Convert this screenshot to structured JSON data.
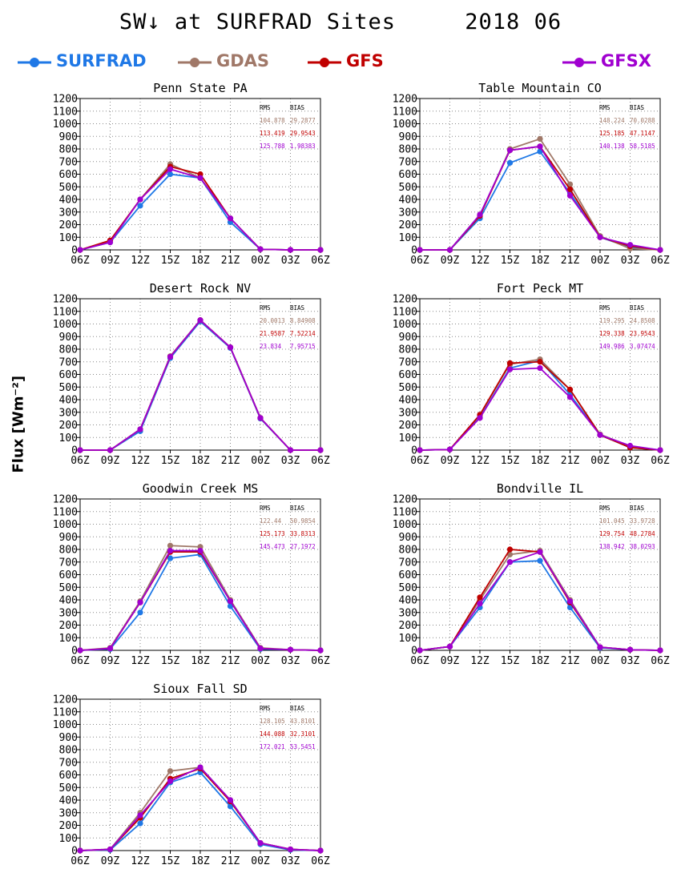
{
  "title": "SW↓ at SURFRAD Sites     2018 06",
  "ylabel": "Flux [Wm⁻²]",
  "legend": [
    {
      "name": "SURFRAD",
      "color": "#1f78e6"
    },
    {
      "name": "GDAS",
      "color": "#a07868"
    },
    {
      "name": "GFS",
      "color": "#c00000"
    },
    {
      "name": "GFSX",
      "color": "#a000d0"
    }
  ],
  "stats_headers": [
    "RMS",
    "BIAS"
  ],
  "chart_data": [
    {
      "type": "line",
      "title": "Penn State PA",
      "categories": [
        "06Z",
        "09Z",
        "12Z",
        "15Z",
        "18Z",
        "21Z",
        "00Z",
        "03Z",
        "06Z"
      ],
      "ylim": [
        0,
        1200
      ],
      "yticks": [
        0,
        100,
        200,
        300,
        400,
        500,
        600,
        700,
        800,
        900,
        1000,
        1100,
        1200
      ],
      "grid": true,
      "series": [
        {
          "name": "SURFRAD",
          "color": "#1f78e6",
          "values": [
            0,
            60,
            350,
            600,
            570,
            220,
            5,
            0,
            0
          ]
        },
        {
          "name": "GDAS",
          "color": "#a07868",
          "values": [
            0,
            70,
            400,
            680,
            570,
            250,
            5,
            0,
            0
          ]
        },
        {
          "name": "GFS",
          "color": "#c00000",
          "values": [
            0,
            75,
            400,
            660,
            600,
            250,
            5,
            0,
            0
          ]
        },
        {
          "name": "GFSX",
          "color": "#a000d0",
          "values": [
            0,
            60,
            400,
            640,
            570,
            250,
            5,
            0,
            0
          ]
        }
      ],
      "stats": [
        {
          "model": "GDAS",
          "rms": "104.878",
          "bias": "29.2877"
        },
        {
          "model": "GFS",
          "rms": "113.419",
          "bias": "29.9543"
        },
        {
          "model": "GFSX",
          "rms": "125.788",
          "bias": "1.98383"
        }
      ]
    },
    {
      "type": "line",
      "title": "Table Mountain CO",
      "categories": [
        "06Z",
        "09Z",
        "12Z",
        "15Z",
        "18Z",
        "21Z",
        "00Z",
        "03Z",
        "06Z"
      ],
      "ylim": [
        0,
        1200
      ],
      "yticks": [
        0,
        100,
        200,
        300,
        400,
        500,
        600,
        700,
        800,
        900,
        1000,
        1100,
        1200
      ],
      "grid": true,
      "series": [
        {
          "name": "SURFRAD",
          "color": "#1f78e6",
          "values": [
            0,
            0,
            250,
            690,
            780,
            450,
            100,
            20,
            0
          ]
        },
        {
          "name": "GDAS",
          "color": "#a07868",
          "values": [
            0,
            0,
            270,
            800,
            880,
            520,
            110,
            10,
            0
          ]
        },
        {
          "name": "GFS",
          "color": "#c00000",
          "values": [
            0,
            0,
            270,
            790,
            820,
            480,
            100,
            30,
            0
          ]
        },
        {
          "name": "GFSX",
          "color": "#a000d0",
          "values": [
            0,
            0,
            280,
            790,
            820,
            430,
            100,
            40,
            0
          ]
        }
      ],
      "stats": [
        {
          "model": "GDAS",
          "rms": "148.224",
          "bias": "70.0288"
        },
        {
          "model": "GFS",
          "rms": "125.185",
          "bias": "47.1147"
        },
        {
          "model": "GFSX",
          "rms": "140.138",
          "bias": "58.5185"
        }
      ]
    },
    {
      "type": "line",
      "title": "Desert Rock NV",
      "categories": [
        "06Z",
        "09Z",
        "12Z",
        "15Z",
        "18Z",
        "21Z",
        "00Z",
        "03Z",
        "06Z"
      ],
      "ylim": [
        0,
        1200
      ],
      "yticks": [
        0,
        100,
        200,
        300,
        400,
        500,
        600,
        700,
        800,
        900,
        1000,
        1100,
        1200
      ],
      "grid": true,
      "series": [
        {
          "name": "SURFRAD",
          "color": "#1f78e6",
          "values": [
            0,
            0,
            150,
            730,
            1020,
            810,
            250,
            0,
            0
          ]
        },
        {
          "name": "GDAS",
          "color": "#a07868",
          "values": [
            0,
            0,
            165,
            745,
            1030,
            815,
            255,
            0,
            0
          ]
        },
        {
          "name": "GFS",
          "color": "#c00000",
          "values": [
            0,
            0,
            165,
            740,
            1030,
            815,
            255,
            0,
            0
          ]
        },
        {
          "name": "GFSX",
          "color": "#a000d0",
          "values": [
            0,
            0,
            165,
            740,
            1030,
            815,
            255,
            0,
            0
          ]
        }
      ],
      "stats": [
        {
          "model": "GDAS",
          "rms": "20.0013",
          "bias": "8.84908"
        },
        {
          "model": "GFS",
          "rms": "21.9587",
          "bias": "7.52214"
        },
        {
          "model": "GFSX",
          "rms": "23.834",
          "bias": "7.95715"
        }
      ]
    },
    {
      "type": "line",
      "title": "Fort Peck MT",
      "categories": [
        "06Z",
        "09Z",
        "12Z",
        "15Z",
        "18Z",
        "21Z",
        "00Z",
        "03Z",
        "06Z"
      ],
      "ylim": [
        0,
        1200
      ],
      "yticks": [
        0,
        100,
        200,
        300,
        400,
        500,
        600,
        700,
        800,
        900,
        1000,
        1100,
        1200
      ],
      "grid": true,
      "series": [
        {
          "name": "SURFRAD",
          "color": "#1f78e6",
          "values": [
            0,
            5,
            260,
            650,
            710,
            440,
            120,
            20,
            0
          ]
        },
        {
          "name": "GDAS",
          "color": "#a07868",
          "values": [
            0,
            5,
            280,
            680,
            720,
            480,
            125,
            30,
            0
          ]
        },
        {
          "name": "GFS",
          "color": "#c00000",
          "values": [
            0,
            5,
            280,
            690,
            700,
            480,
            120,
            20,
            0
          ]
        },
        {
          "name": "GFSX",
          "color": "#a000d0",
          "values": [
            0,
            5,
            255,
            640,
            650,
            420,
            120,
            35,
            0
          ]
        }
      ],
      "stats": [
        {
          "model": "GDAS",
          "rms": "119.295",
          "bias": "24.8508"
        },
        {
          "model": "GFS",
          "rms": "129.338",
          "bias": "23.9543"
        },
        {
          "model": "GFSX",
          "rms": "149.986",
          "bias": "3.07474"
        }
      ]
    },
    {
      "type": "line",
      "title": "Goodwin Creek MS",
      "categories": [
        "06Z",
        "09Z",
        "12Z",
        "15Z",
        "18Z",
        "21Z",
        "00Z",
        "03Z",
        "06Z"
      ],
      "ylim": [
        0,
        1200
      ],
      "yticks": [
        0,
        100,
        200,
        300,
        400,
        500,
        600,
        700,
        800,
        900,
        1000,
        1100,
        1200
      ],
      "grid": true,
      "series": [
        {
          "name": "SURFRAD",
          "color": "#1f78e6",
          "values": [
            0,
            10,
            300,
            730,
            760,
            350,
            10,
            5,
            0
          ]
        },
        {
          "name": "GDAS",
          "color": "#a07868",
          "values": [
            0,
            20,
            390,
            830,
            820,
            400,
            20,
            5,
            0
          ]
        },
        {
          "name": "GFS",
          "color": "#c00000",
          "values": [
            0,
            15,
            380,
            780,
            780,
            390,
            15,
            5,
            0
          ]
        },
        {
          "name": "GFSX",
          "color": "#a000d0",
          "values": [
            0,
            15,
            380,
            790,
            790,
            390,
            15,
            5,
            0
          ]
        }
      ],
      "stats": [
        {
          "model": "GDAS",
          "rms": "122.44",
          "bias": "50.9854"
        },
        {
          "model": "GFS",
          "rms": "125.173",
          "bias": "33.8313"
        },
        {
          "model": "GFSX",
          "rms": "145.473",
          "bias": "27.1972"
        }
      ]
    },
    {
      "type": "line",
      "title": "Bondville IL",
      "categories": [
        "06Z",
        "09Z",
        "12Z",
        "15Z",
        "18Z",
        "21Z",
        "00Z",
        "03Z",
        "06Z"
      ],
      "ylim": [
        0,
        1200
      ],
      "yticks": [
        0,
        100,
        200,
        300,
        400,
        500,
        600,
        700,
        800,
        900,
        1000,
        1100,
        1200
      ],
      "grid": true,
      "series": [
        {
          "name": "SURFRAD",
          "color": "#1f78e6",
          "values": [
            0,
            30,
            340,
            700,
            710,
            340,
            20,
            5,
            0
          ]
        },
        {
          "name": "GDAS",
          "color": "#a07868",
          "values": [
            0,
            30,
            400,
            760,
            790,
            400,
            25,
            5,
            0
          ]
        },
        {
          "name": "GFS",
          "color": "#c00000",
          "values": [
            0,
            30,
            420,
            800,
            780,
            380,
            25,
            5,
            0
          ]
        },
        {
          "name": "GFSX",
          "color": "#a000d0",
          "values": [
            0,
            30,
            370,
            700,
            780,
            390,
            25,
            5,
            0
          ]
        }
      ],
      "stats": [
        {
          "model": "GDAS",
          "rms": "101.045",
          "bias": "33.9728"
        },
        {
          "model": "GFS",
          "rms": "129.754",
          "bias": "48.2784"
        },
        {
          "model": "GFSX",
          "rms": "138.942",
          "bias": "38.0293"
        }
      ]
    },
    {
      "type": "line",
      "title": "Sioux Fall SD",
      "categories": [
        "06Z",
        "09Z",
        "12Z",
        "15Z",
        "18Z",
        "21Z",
        "00Z",
        "03Z",
        "06Z"
      ],
      "ylim": [
        0,
        1200
      ],
      "yticks": [
        0,
        100,
        200,
        300,
        400,
        500,
        600,
        700,
        800,
        900,
        1000,
        1100,
        1200
      ],
      "grid": true,
      "series": [
        {
          "name": "SURFRAD",
          "color": "#1f78e6",
          "values": [
            0,
            5,
            215,
            540,
            620,
            350,
            50,
            5,
            0
          ]
        },
        {
          "name": "GDAS",
          "color": "#a07868",
          "values": [
            0,
            10,
            300,
            630,
            660,
            400,
            60,
            10,
            0
          ]
        },
        {
          "name": "GFS",
          "color": "#c00000",
          "values": [
            0,
            10,
            260,
            570,
            650,
            390,
            60,
            10,
            0
          ]
        },
        {
          "name": "GFSX",
          "color": "#a000d0",
          "values": [
            0,
            10,
            280,
            550,
            660,
            400,
            60,
            10,
            0
          ]
        }
      ],
      "stats": [
        {
          "model": "GDAS",
          "rms": "128.105",
          "bias": "43.8101"
        },
        {
          "model": "GFS",
          "rms": "144.088",
          "bias": "32.3101"
        },
        {
          "model": "GFSX",
          "rms": "172.021",
          "bias": "53.5451"
        }
      ]
    }
  ]
}
